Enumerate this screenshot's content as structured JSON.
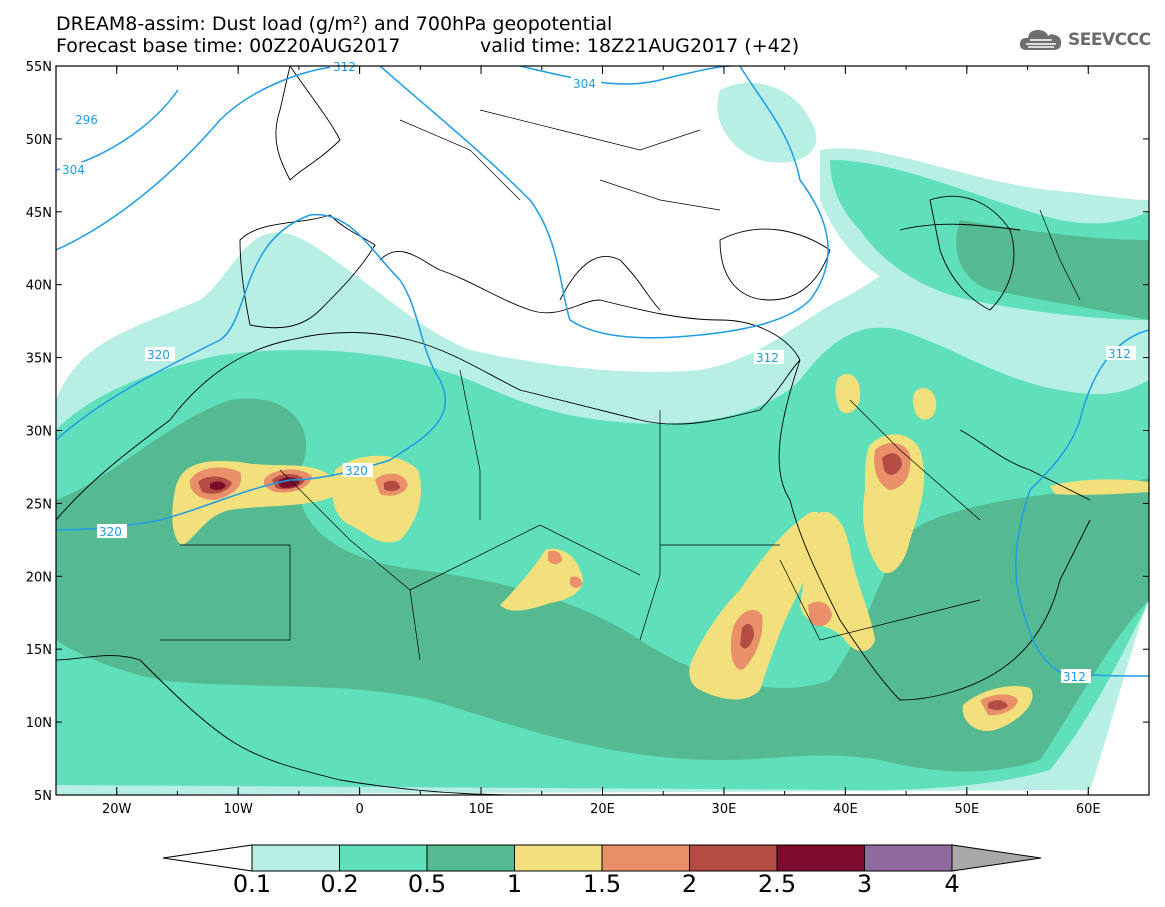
{
  "header": {
    "line1": "DREAM8-assim: Dust load (g/m²) and 700hPa geopotential",
    "line2_base": "Forecast base time: 00Z20AUG2017",
    "line2_valid": "valid time: 18Z21AUG2017 (+42)"
  },
  "logo": {
    "text": "SEEVCCC",
    "icon": "cloud-logo-icon"
  },
  "map": {
    "lon_range": [
      -25,
      65
    ],
    "lat_range": [
      5,
      55
    ],
    "lat_labels": [
      "55N",
      "50N",
      "45N",
      "40N",
      "35N",
      "30N",
      "25N",
      "20N",
      "15N",
      "10N",
      "5N"
    ],
    "lon_labels": [
      "20W",
      "10W",
      "0",
      "10E",
      "20E",
      "30E",
      "40E",
      "50E",
      "60E"
    ],
    "contour_labels": [
      "296",
      "304",
      "304",
      "312",
      "320",
      "320",
      "320",
      "312",
      "312",
      "312"
    ]
  },
  "colorbar": {
    "labels": [
      "0.1",
      "0.2",
      "0.5",
      "1",
      "1.5",
      "2",
      "2.5",
      "3",
      "4"
    ],
    "colors": [
      "#b7efe4",
      "#5fe0bb",
      "#55b992",
      "#f1e07b",
      "#e9906b",
      "#b34d44",
      "#7d0b2e",
      "#8f6ba0"
    ],
    "under_color": "#ffffff",
    "over_color": "#a9a9a9"
  },
  "style_colors": {
    "contour": "#1e9ce6",
    "coast": "#000000"
  }
}
